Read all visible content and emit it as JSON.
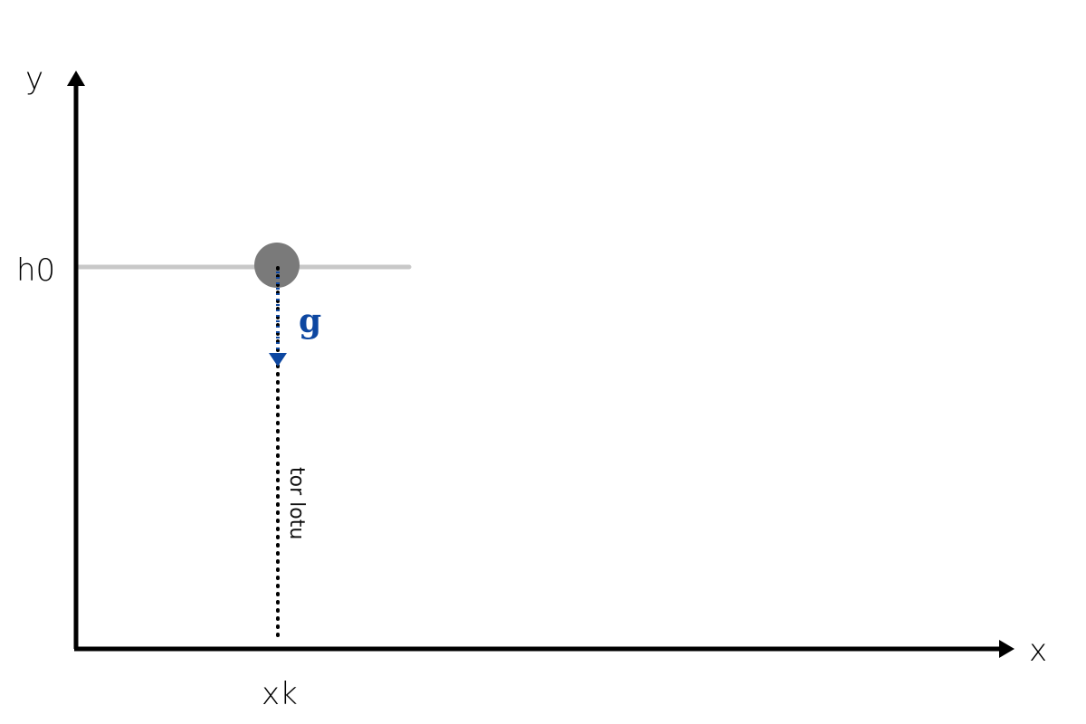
{
  "labels": {
    "y_axis": "y",
    "x_axis": "x",
    "height": "h0",
    "x_position": "xk",
    "gravity": "g",
    "trajectory": "tor lotu"
  },
  "colors": {
    "axis": "#000000",
    "height_line": "#c8c8c8",
    "ball": "#7a7a7a",
    "gravity": "#0d47a1",
    "trajectory": "#000000"
  }
}
